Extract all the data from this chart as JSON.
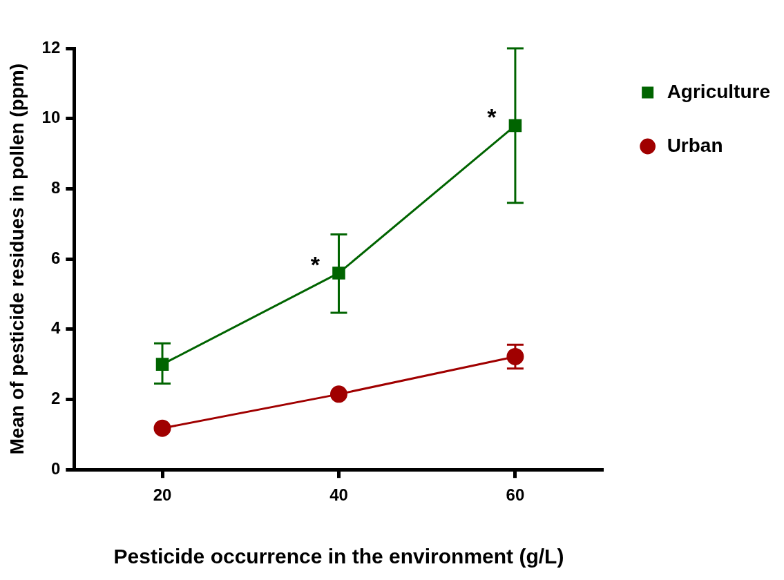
{
  "chart_data": {
    "type": "line",
    "xlabel": "Pesticide occurrence in the environment (g/L)",
    "ylabel": "Mean of pesticide residues in pollen (ppm)",
    "x": [
      20,
      40,
      60
    ],
    "series": [
      {
        "name": "Agriculture",
        "color": "#006400",
        "values": [
          3.0,
          5.6,
          9.8
        ],
        "errors": [
          [
            2.45,
            3.6
          ],
          [
            4.47,
            6.7
          ],
          [
            7.6,
            12
          ]
        ],
        "marker": "square"
      },
      {
        "name": "Urban",
        "color": "#a00000",
        "values": [
          1.18,
          2.15,
          3.22
        ],
        "errors": [
          null,
          null,
          [
            2.88,
            3.56
          ]
        ],
        "marker": "circle"
      }
    ],
    "xlim": [
      10,
      70
    ],
    "xticks": [
      20,
      40,
      60
    ],
    "ylim": [
      0,
      12
    ],
    "yticks": [
      0,
      2,
      4,
      6,
      8,
      10,
      12
    ],
    "grid": false,
    "legend": "top right",
    "line_style": "solid",
    "annotations": [
      {
        "text": "*",
        "x": 40,
        "y": 5.6
      },
      {
        "text": "*",
        "x": 60,
        "y": 9.8
      }
    ]
  }
}
